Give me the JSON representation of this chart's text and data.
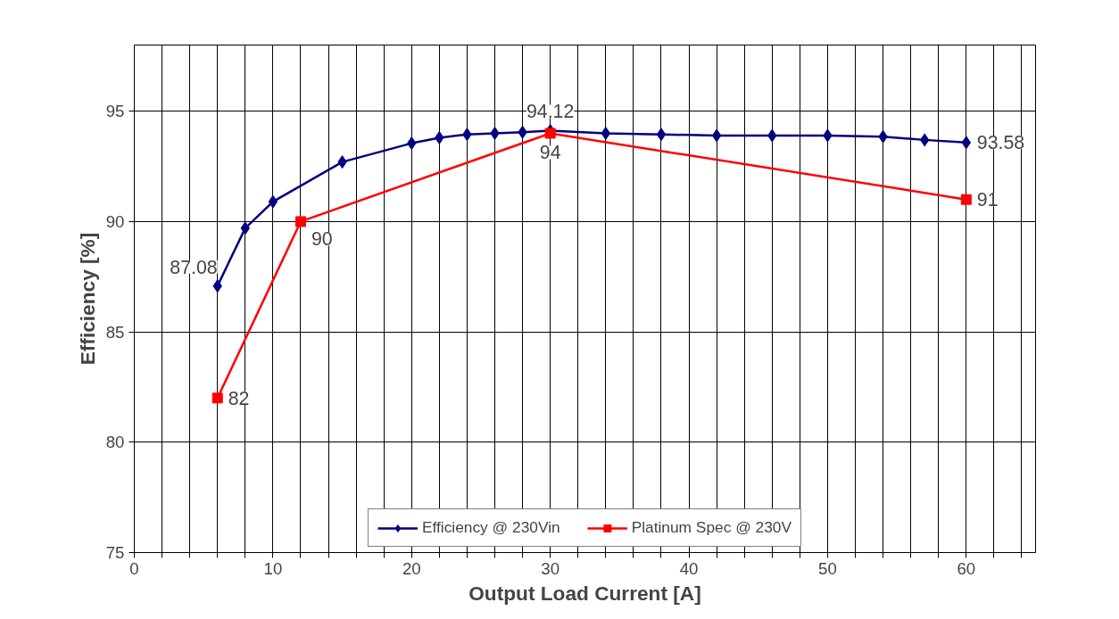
{
  "chart_data": {
    "type": "line",
    "xlabel": "Output Load Current [A]",
    "ylabel": "Efficiency [%]",
    "xlim": [
      0,
      65
    ],
    "ylim": [
      75,
      98
    ],
    "xticks": [
      0,
      {
        "value": 2,
        "label": null
      },
      {
        "value": 4,
        "label": null
      },
      {
        "value": 6,
        "label": null
      },
      {
        "value": 8,
        "label": null
      },
      10,
      {
        "value": 12,
        "label": null
      },
      {
        "value": 14,
        "label": null
      },
      {
        "value": 16,
        "label": null
      },
      {
        "value": 18,
        "label": null
      },
      20,
      {
        "value": 22,
        "label": null
      },
      {
        "value": 24,
        "label": null
      },
      {
        "value": 26,
        "label": null
      },
      {
        "value": 28,
        "label": null
      },
      30,
      {
        "value": 32,
        "label": null
      },
      {
        "value": 34,
        "label": null
      },
      {
        "value": 36,
        "label": null
      },
      {
        "value": 38,
        "label": null
      },
      40,
      {
        "value": 42,
        "label": null
      },
      {
        "value": 44,
        "label": null
      },
      {
        "value": 46,
        "label": null
      },
      {
        "value": 48,
        "label": null
      },
      50,
      {
        "value": 52,
        "label": null
      },
      {
        "value": 54,
        "label": null
      },
      {
        "value": 56,
        "label": null
      },
      {
        "value": 58,
        "label": null
      },
      60,
      {
        "value": 62,
        "label": null
      },
      {
        "value": 64,
        "label": null
      }
    ],
    "yticks": [
      75,
      80,
      85,
      90,
      95
    ],
    "grid": true,
    "legend": "bottom",
    "series": [
      {
        "name": "Efficiency @ 230Vin",
        "color": "#000080",
        "marker": "diamond",
        "x": [
          6,
          8,
          10,
          15,
          20,
          22,
          24,
          26,
          28,
          30,
          34,
          38,
          42,
          46,
          50,
          54,
          57,
          60
        ],
        "values": [
          87.08,
          89.7,
          90.9,
          92.7,
          93.55,
          93.8,
          93.95,
          94.0,
          94.05,
          94.12,
          94.0,
          93.95,
          93.9,
          93.9,
          93.9,
          93.85,
          93.7,
          93.58
        ],
        "value_labels": [
          "87.08",
          null,
          null,
          null,
          null,
          null,
          null,
          null,
          null,
          "94.12",
          null,
          null,
          null,
          null,
          null,
          null,
          null,
          "93.58"
        ]
      },
      {
        "name": "Platinum Spec @ 230V",
        "color": "#ff0000",
        "marker": "square",
        "x": [
          6,
          12,
          30,
          60
        ],
        "values": [
          82,
          90,
          94,
          91
        ],
        "value_labels": [
          "82",
          "90",
          "94",
          "91"
        ]
      }
    ]
  }
}
